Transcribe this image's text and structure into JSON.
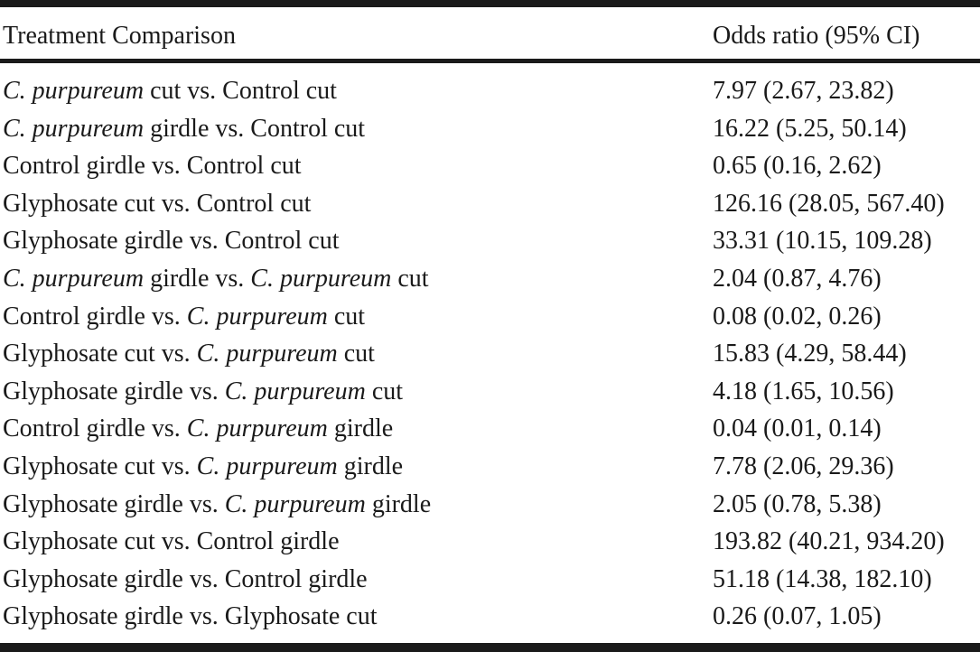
{
  "table": {
    "headers": [
      "Treatment Comparison",
      "Odds ratio (95% CI)"
    ],
    "rows": [
      {
        "comparison": [
          {
            "t": "C. purpureum",
            "i": true
          },
          {
            "t": " cut vs. Control cut",
            "i": false
          }
        ],
        "odds": "7.97 (2.67, 23.82)"
      },
      {
        "comparison": [
          {
            "t": "C. purpureum",
            "i": true
          },
          {
            "t": " girdle vs. Control cut",
            "i": false
          }
        ],
        "odds": "16.22 (5.25, 50.14)"
      },
      {
        "comparison": [
          {
            "t": "Control girdle vs. Control cut",
            "i": false
          }
        ],
        "odds": "0.65 (0.16, 2.62)"
      },
      {
        "comparison": [
          {
            "t": "Glyphosate cut vs. Control cut",
            "i": false
          }
        ],
        "odds": "126.16 (28.05, 567.40)"
      },
      {
        "comparison": [
          {
            "t": "Glyphosate girdle vs. Control cut",
            "i": false
          }
        ],
        "odds": "33.31 (10.15, 109.28)"
      },
      {
        "comparison": [
          {
            "t": "C. purpureum",
            "i": true
          },
          {
            "t": " girdle vs. ",
            "i": false
          },
          {
            "t": "C. purpureum",
            "i": true
          },
          {
            "t": " cut",
            "i": false
          }
        ],
        "odds": "2.04 (0.87, 4.76)"
      },
      {
        "comparison": [
          {
            "t": "Control girdle vs. ",
            "i": false
          },
          {
            "t": "C. purpureum",
            "i": true
          },
          {
            "t": " cut",
            "i": false
          }
        ],
        "odds": "0.08 (0.02, 0.26)"
      },
      {
        "comparison": [
          {
            "t": "Glyphosate cut vs. ",
            "i": false
          },
          {
            "t": "C. purpureum",
            "i": true
          },
          {
            "t": " cut",
            "i": false
          }
        ],
        "odds": "15.83 (4.29, 58.44)"
      },
      {
        "comparison": [
          {
            "t": "Glyphosate girdle vs. ",
            "i": false
          },
          {
            "t": "C. purpureum",
            "i": true
          },
          {
            "t": " cut",
            "i": false
          }
        ],
        "odds": "4.18 (1.65, 10.56)"
      },
      {
        "comparison": [
          {
            "t": "Control girdle vs. ",
            "i": false
          },
          {
            "t": "C. purpureum",
            "i": true
          },
          {
            "t": " girdle",
            "i": false
          }
        ],
        "odds": "0.04 (0.01, 0.14)"
      },
      {
        "comparison": [
          {
            "t": "Glyphosate cut vs. ",
            "i": false
          },
          {
            "t": "C. purpureum",
            "i": true
          },
          {
            "t": " girdle",
            "i": false
          }
        ],
        "odds": "7.78 (2.06, 29.36)"
      },
      {
        "comparison": [
          {
            "t": "Glyphosate girdle vs. ",
            "i": false
          },
          {
            "t": "C. purpureum",
            "i": true
          },
          {
            "t": " girdle",
            "i": false
          }
        ],
        "odds": "2.05 (0.78, 5.38)"
      },
      {
        "comparison": [
          {
            "t": "Glyphosate cut vs. Control girdle",
            "i": false
          }
        ],
        "odds": "193.82 (40.21, 934.20)"
      },
      {
        "comparison": [
          {
            "t": "Glyphosate girdle vs. Control girdle",
            "i": false
          }
        ],
        "odds": "51.18 (14.38, 182.10)"
      },
      {
        "comparison": [
          {
            "t": "Glyphosate girdle vs. Glyphosate cut",
            "i": false
          }
        ],
        "odds": "0.26 (0.07, 1.05)"
      }
    ]
  }
}
